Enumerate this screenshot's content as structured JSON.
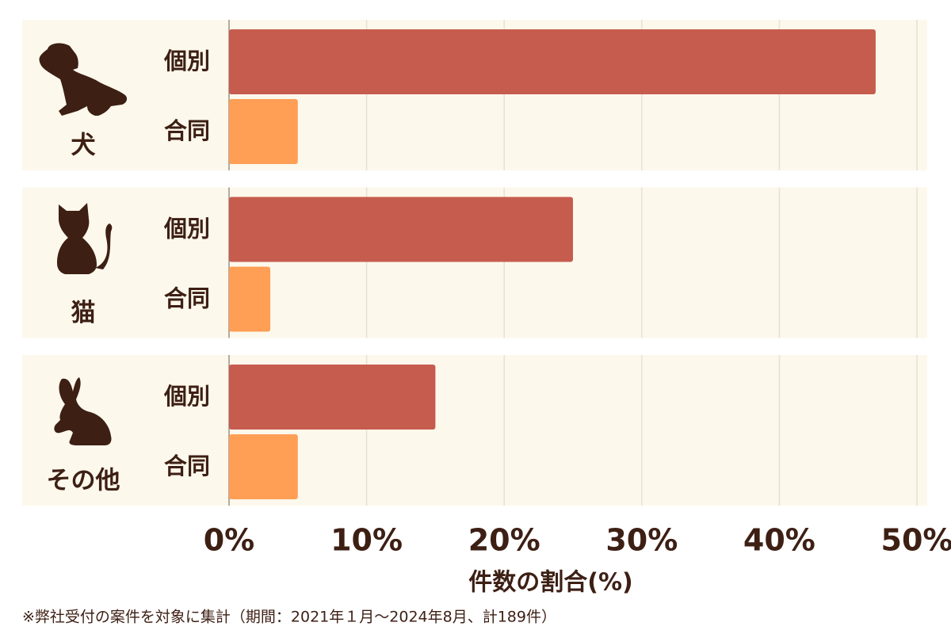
{
  "chart_data": {
    "type": "bar",
    "categories": [
      "犬",
      "猫",
      "その他"
    ],
    "series": [
      {
        "name": "個別",
        "color": "#c65c4e",
        "values": [
          47,
          25,
          15
        ]
      },
      {
        "name": "合同",
        "color": "#fe9f55",
        "values": [
          5,
          3,
          5
        ]
      }
    ],
    "xlim": [
      0,
      50
    ],
    "xticks": [
      {
        "value": 0,
        "label": "0%"
      },
      {
        "value": 10,
        "label": "10%"
      },
      {
        "value": 20,
        "label": "20%"
      },
      {
        "value": 30,
        "label": "30%"
      },
      {
        "value": 40,
        "label": "40%"
      },
      {
        "value": 50,
        "label": "50%"
      }
    ],
    "xlabel": "件数の割合(%)",
    "note": "※弊社受付の案件を対象に集計（期間：2021年１月～2024年8月、計189件）",
    "grid": true
  }
}
